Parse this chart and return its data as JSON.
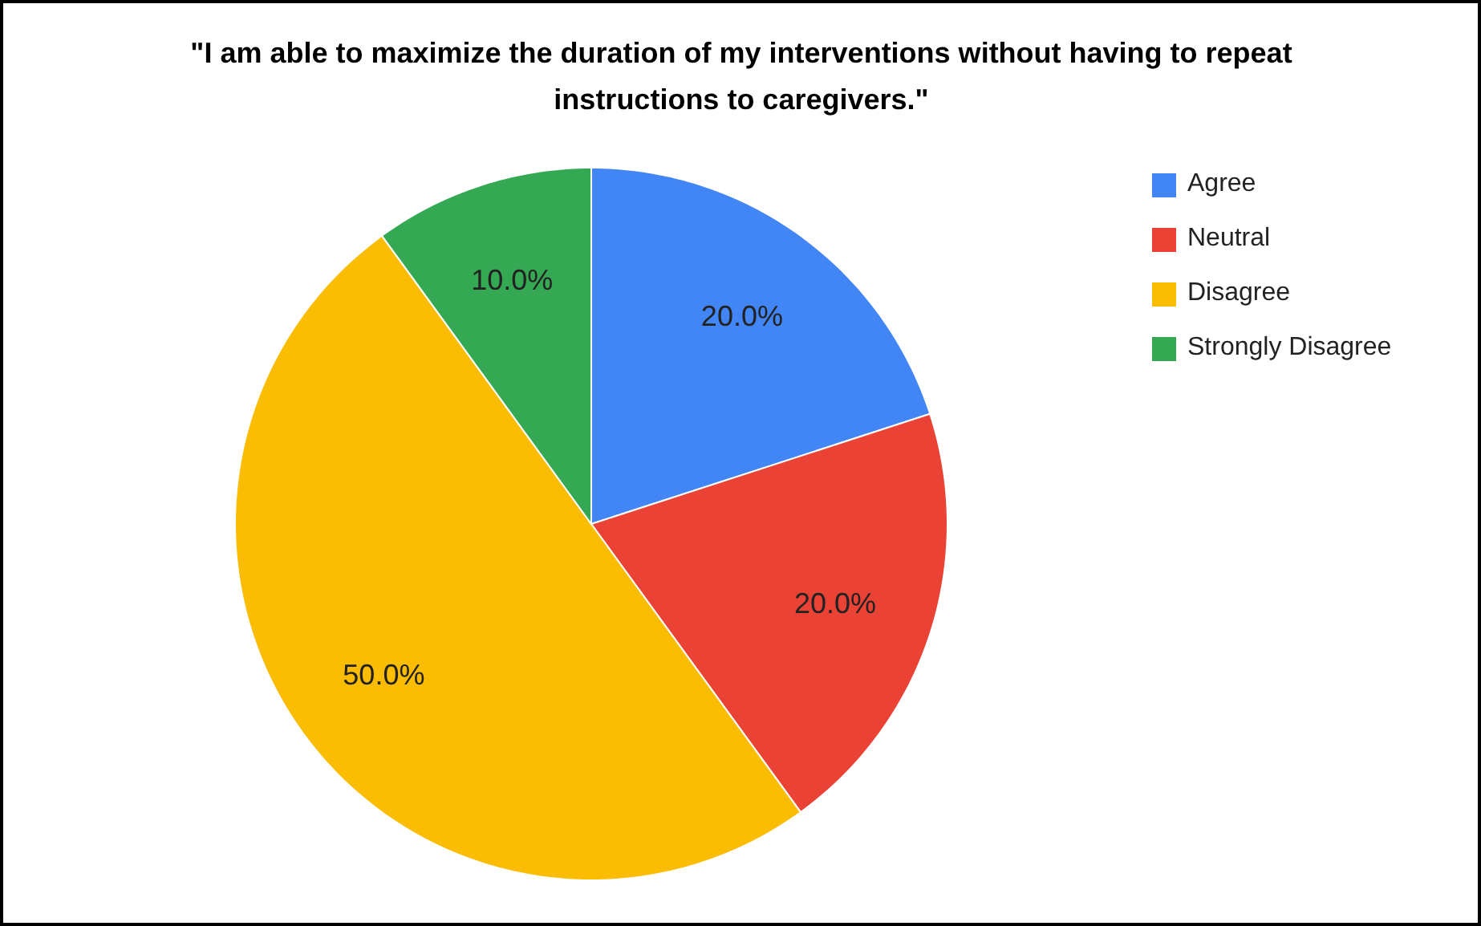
{
  "chart_data": {
    "type": "pie",
    "title": "\"I am able to maximize the duration of my interventions without having to repeat instructions to caregivers.\"",
    "categories": [
      "Agree",
      "Neutral",
      "Disagree",
      "Strongly Disagree"
    ],
    "values": [
      20,
      20,
      50,
      10
    ],
    "colors": [
      "#4285f4",
      "#ea4335",
      "#fbbc04",
      "#34a853"
    ],
    "value_labels": [
      "20.0%",
      "20.0%",
      "50.0%",
      "10.0%"
    ],
    "legend": "right"
  }
}
